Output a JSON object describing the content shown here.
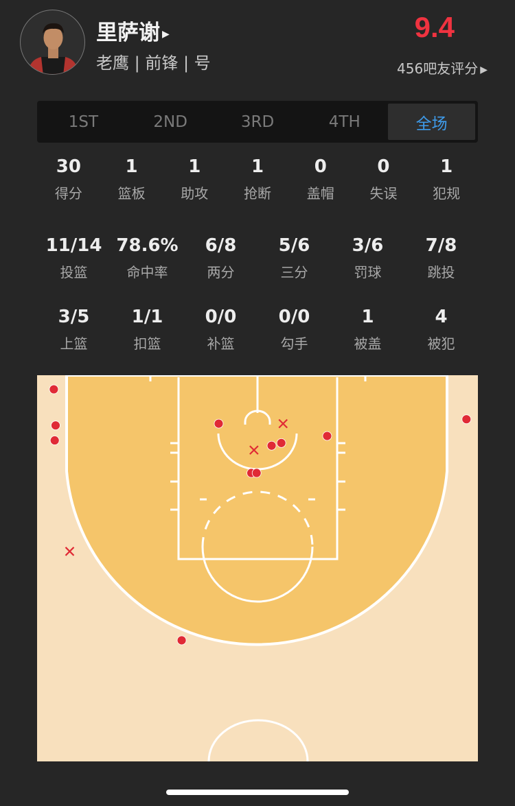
{
  "player": {
    "name": "里萨谢",
    "team_position": "老鹰 | 前锋 | 号",
    "rating": "9.4",
    "rating_count": "456吧友评分",
    "rating_color": "#ef3340"
  },
  "tabs": [
    {
      "label": "1ST"
    },
    {
      "label": "2ND"
    },
    {
      "label": "3RD"
    },
    {
      "label": "4TH"
    },
    {
      "label": "全场",
      "active": true
    }
  ],
  "stats_row1": [
    {
      "v": "30",
      "l": "得分"
    },
    {
      "v": "1",
      "l": "篮板"
    },
    {
      "v": "1",
      "l": "助攻"
    },
    {
      "v": "1",
      "l": "抢断"
    },
    {
      "v": "0",
      "l": "盖帽"
    },
    {
      "v": "0",
      "l": "失误"
    },
    {
      "v": "1",
      "l": "犯规"
    }
  ],
  "stats_row2": [
    {
      "v": "11/14",
      "l": "投篮"
    },
    {
      "v": "78.6%",
      "l": "命中率"
    },
    {
      "v": "6/8",
      "l": "两分"
    },
    {
      "v": "5/6",
      "l": "三分"
    },
    {
      "v": "3/6",
      "l": "罚球"
    },
    {
      "v": "7/8",
      "l": "跳投"
    }
  ],
  "stats_row3": [
    {
      "v": "3/5",
      "l": "上篮"
    },
    {
      "v": "1/1",
      "l": "扣篮"
    },
    {
      "v": "0/0",
      "l": "补篮"
    },
    {
      "v": "0/0",
      "l": "勾手"
    },
    {
      "v": "1",
      "l": "被盖"
    },
    {
      "v": "4",
      "l": "被犯"
    }
  ],
  "shot_chart": {
    "units": "feet from left sideline (x) and baseline (y)",
    "made_color": "#e02a35",
    "court_color": "#f5c56a",
    "outer_color": "#f8e0bd",
    "shots": [
      {
        "x": 1.9,
        "y": 1.6,
        "made": true
      },
      {
        "x": 2.1,
        "y": 5.7,
        "made": true
      },
      {
        "x": 2.0,
        "y": 7.4,
        "made": true
      },
      {
        "x": 20.6,
        "y": 5.5,
        "made": true
      },
      {
        "x": 26.6,
        "y": 8.0,
        "made": true
      },
      {
        "x": 27.7,
        "y": 7.7,
        "made": true
      },
      {
        "x": 32.9,
        "y": 6.9,
        "made": true
      },
      {
        "x": 24.3,
        "y": 11.1,
        "made": true
      },
      {
        "x": 24.9,
        "y": 11.1,
        "made": true
      },
      {
        "x": 48.7,
        "y": 5.0,
        "made": true
      },
      {
        "x": 16.4,
        "y": 30.1,
        "made": true
      },
      {
        "x": 27.9,
        "y": 5.5,
        "made": false
      },
      {
        "x": 24.6,
        "y": 8.5,
        "made": false
      },
      {
        "x": 3.7,
        "y": 20.0,
        "made": false
      }
    ]
  }
}
